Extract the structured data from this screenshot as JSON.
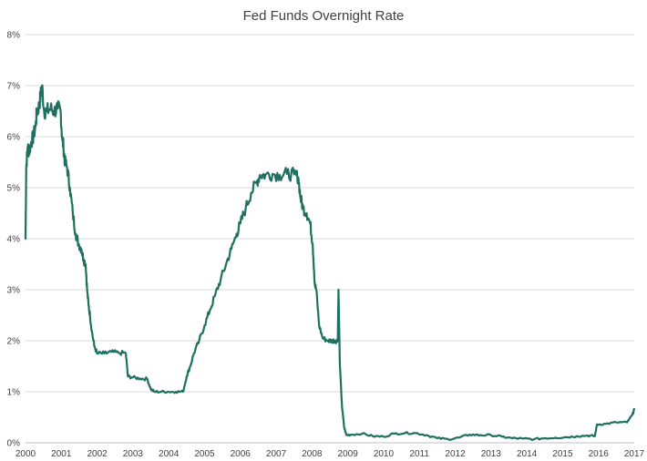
{
  "chart_data": {
    "type": "line",
    "title": "Fed Funds Overnight Rate",
    "xlabel": "",
    "ylabel": "",
    "xlim": [
      2000,
      2017
    ],
    "ylim": [
      0,
      8
    ],
    "x_ticks": [
      "2000",
      "2001",
      "2002",
      "2003",
      "2004",
      "2005",
      "2006",
      "2007",
      "2008",
      "2009",
      "2010",
      "2011",
      "2012",
      "2013",
      "2014",
      "2015",
      "2016",
      "2017"
    ],
    "y_ticks": [
      "0%",
      "1%",
      "2%",
      "3%",
      "4%",
      "5%",
      "6%",
      "7%",
      "8%"
    ],
    "grid": true,
    "legend": "none",
    "colors": {
      "series": "#1e7060",
      "grid": "#d9d9d9",
      "axis": "#bfbfbf",
      "text": "#404040"
    },
    "series": [
      {
        "points": [
          [
            2000.0,
            4.0
          ],
          [
            2000.02,
            5.4
          ],
          [
            2000.06,
            5.8
          ],
          [
            2000.1,
            5.7
          ],
          [
            2000.16,
            5.9
          ],
          [
            2000.22,
            6.0
          ],
          [
            2000.28,
            6.2
          ],
          [
            2000.32,
            6.5
          ],
          [
            2000.38,
            6.6
          ],
          [
            2000.42,
            6.8
          ],
          [
            2000.46,
            7.0
          ],
          [
            2000.52,
            6.5
          ],
          [
            2000.6,
            6.5
          ],
          [
            2000.7,
            6.55
          ],
          [
            2000.8,
            6.5
          ],
          [
            2000.9,
            6.55
          ],
          [
            2000.98,
            6.5
          ],
          [
            2001.02,
            6.0
          ],
          [
            2001.06,
            5.8
          ],
          [
            2001.1,
            5.5
          ],
          [
            2001.16,
            5.4
          ],
          [
            2001.24,
            5.0
          ],
          [
            2001.32,
            4.5
          ],
          [
            2001.4,
            4.1
          ],
          [
            2001.48,
            3.9
          ],
          [
            2001.56,
            3.8
          ],
          [
            2001.62,
            3.6
          ],
          [
            2001.68,
            3.5
          ],
          [
            2001.72,
            3.0
          ],
          [
            2001.76,
            2.7
          ],
          [
            2001.8,
            2.5
          ],
          [
            2001.85,
            2.2
          ],
          [
            2001.92,
            1.9
          ],
          [
            2002.0,
            1.75
          ],
          [
            2002.2,
            1.75
          ],
          [
            2002.4,
            1.78
          ],
          [
            2002.6,
            1.76
          ],
          [
            2002.8,
            1.76
          ],
          [
            2002.86,
            1.3
          ],
          [
            2003.0,
            1.28
          ],
          [
            2003.2,
            1.26
          ],
          [
            2003.4,
            1.25
          ],
          [
            2003.5,
            1.05
          ],
          [
            2003.6,
            1.0
          ],
          [
            2003.8,
            1.0
          ],
          [
            2004.0,
            1.0
          ],
          [
            2004.2,
            1.0
          ],
          [
            2004.4,
            1.0
          ],
          [
            2004.5,
            1.3
          ],
          [
            2004.6,
            1.5
          ],
          [
            2004.7,
            1.75
          ],
          [
            2004.85,
            2.0
          ],
          [
            2005.0,
            2.3
          ],
          [
            2005.15,
            2.6
          ],
          [
            2005.3,
            2.9
          ],
          [
            2005.45,
            3.2
          ],
          [
            2005.6,
            3.5
          ],
          [
            2005.75,
            3.8
          ],
          [
            2005.9,
            4.1
          ],
          [
            2006.0,
            4.3
          ],
          [
            2006.15,
            4.6
          ],
          [
            2006.3,
            4.9
          ],
          [
            2006.45,
            5.1
          ],
          [
            2006.55,
            5.25
          ],
          [
            2006.7,
            5.25
          ],
          [
            2006.9,
            5.27
          ],
          [
            2007.1,
            5.25
          ],
          [
            2007.3,
            5.27
          ],
          [
            2007.5,
            5.26
          ],
          [
            2007.62,
            5.2
          ],
          [
            2007.68,
            4.8
          ],
          [
            2007.75,
            4.6
          ],
          [
            2007.85,
            4.5
          ],
          [
            2007.95,
            4.3
          ],
          [
            2008.02,
            3.9
          ],
          [
            2008.08,
            3.1
          ],
          [
            2008.12,
            3.0
          ],
          [
            2008.2,
            2.3
          ],
          [
            2008.3,
            2.05
          ],
          [
            2008.45,
            2.0
          ],
          [
            2008.55,
            2.0
          ],
          [
            2008.65,
            2.0
          ],
          [
            2008.72,
            2.0
          ],
          [
            2008.74,
            3.0
          ],
          [
            2008.78,
            1.5
          ],
          [
            2008.84,
            0.7
          ],
          [
            2008.9,
            0.3
          ],
          [
            2008.96,
            0.15
          ],
          [
            2009.1,
            0.16
          ],
          [
            2009.4,
            0.18
          ],
          [
            2009.7,
            0.13
          ],
          [
            2010.0,
            0.12
          ],
          [
            2010.3,
            0.18
          ],
          [
            2010.6,
            0.19
          ],
          [
            2010.9,
            0.19
          ],
          [
            2011.2,
            0.15
          ],
          [
            2011.5,
            0.09
          ],
          [
            2011.8,
            0.07
          ],
          [
            2012.1,
            0.1
          ],
          [
            2012.4,
            0.16
          ],
          [
            2012.7,
            0.15
          ],
          [
            2013.0,
            0.15
          ],
          [
            2013.3,
            0.12
          ],
          [
            2013.6,
            0.09
          ],
          [
            2013.9,
            0.08
          ],
          [
            2014.2,
            0.07
          ],
          [
            2014.5,
            0.09
          ],
          [
            2014.8,
            0.1
          ],
          [
            2015.1,
            0.11
          ],
          [
            2015.4,
            0.13
          ],
          [
            2015.7,
            0.14
          ],
          [
            2015.9,
            0.13
          ],
          [
            2015.96,
            0.36
          ],
          [
            2016.2,
            0.37
          ],
          [
            2016.5,
            0.4
          ],
          [
            2016.8,
            0.4
          ],
          [
            2016.95,
            0.55
          ],
          [
            2017.0,
            0.66
          ]
        ]
      }
    ]
  }
}
